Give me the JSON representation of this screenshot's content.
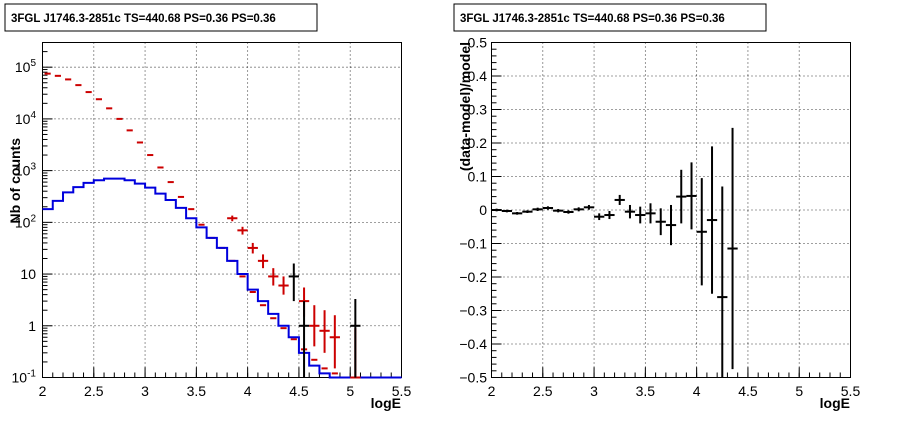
{
  "chart_data": [
    {
      "type": "histogram",
      "title": "3FGL J1746.3-2851c TS=440.68 PS=0.36 PS=0.36",
      "xlabel": "logE",
      "ylabel": "Nb of counts",
      "xlim": [
        2,
        5.5
      ],
      "ylim": [
        0.1,
        300000
      ],
      "y_scale": "log",
      "grid": true,
      "x_ticks": [
        "2",
        "2.5",
        "3",
        "3.5",
        "4",
        "4.5",
        "5",
        "5.5"
      ],
      "y_ticks": [
        {
          "value": 0.1,
          "label": "10",
          "sup": "-1"
        },
        {
          "value": 1,
          "label": "1",
          "sup": ""
        },
        {
          "value": 10,
          "label": "10",
          "sup": ""
        },
        {
          "value": 100,
          "label": "10",
          "sup": "2"
        },
        {
          "value": 1000,
          "label": "10",
          "sup": "3"
        },
        {
          "value": 10000,
          "label": "10",
          "sup": "4"
        },
        {
          "value": 100000,
          "label": "10",
          "sup": "5"
        }
      ],
      "bin_width": 0.1,
      "series": [
        {
          "color": "#cc0000",
          "style": "markers",
          "x": [
            2.05,
            2.15,
            2.25,
            2.35,
            2.45,
            2.55,
            2.65,
            2.75,
            2.85,
            2.95,
            3.05,
            3.15,
            3.25,
            3.35,
            3.45,
            3.55,
            3.65,
            3.75,
            3.85,
            3.95,
            4.05,
            4.15,
            4.25,
            4.35,
            4.45,
            4.55,
            4.65,
            4.75,
            4.85,
            4.95,
            5.05
          ],
          "y": [
            75000,
            68000,
            58000,
            45000,
            33000,
            24000,
            16000,
            10000,
            6000,
            3500,
            2000,
            1150,
            600,
            310,
            180,
            90,
            50,
            32,
            18,
            9,
            4.5,
            2.5,
            1.4,
            0.9,
            0.55,
            0.35,
            0.22,
            0.15,
            0.12,
            0.1,
            0.1
          ],
          "y_err_low": [
            0,
            0,
            0,
            0,
            0,
            0,
            0,
            0,
            0,
            0,
            0,
            0,
            0,
            0,
            0,
            0,
            0,
            0,
            0,
            0,
            0,
            0,
            0,
            0,
            0,
            0,
            0,
            0,
            0,
            0,
            0
          ],
          "y_err_high": [
            0,
            0,
            0,
            0,
            0,
            0,
            0,
            0,
            0,
            0,
            0,
            0,
            0,
            0,
            0,
            0,
            0,
            0,
            0,
            0,
            0,
            0,
            0,
            0,
            0,
            0,
            0,
            0,
            0,
            0,
            0
          ]
        },
        {
          "color": "#0000dd",
          "style": "step",
          "x": [
            2.05,
            2.15,
            2.25,
            2.35,
            2.45,
            2.55,
            2.65,
            2.75,
            2.85,
            2.95,
            3.05,
            3.15,
            3.25,
            3.35,
            3.45,
            3.55,
            3.65,
            3.75,
            3.85,
            3.95,
            4.05,
            4.15,
            4.25,
            4.35,
            4.45,
            4.55,
            4.65,
            4.75,
            4.85,
            4.95,
            5.05,
            5.15,
            5.25,
            5.35,
            5.45
          ],
          "y": [
            180,
            260,
            380,
            480,
            580,
            650,
            700,
            700,
            650,
            560,
            470,
            360,
            270,
            190,
            120,
            80,
            50,
            32,
            18,
            10,
            5,
            3,
            1.7,
            1,
            0.6,
            0.3,
            0.17,
            0.12,
            0.1,
            0.1,
            0.1,
            0.1,
            0.1,
            0.1,
            0.1
          ]
        },
        {
          "color": "#cc0000",
          "style": "errorbars",
          "x": [
            3.85,
            3.95,
            4.05,
            4.15,
            4.25,
            4.35,
            4.55,
            4.65,
            4.75,
            4.85,
            5.05
          ],
          "y": [
            120,
            70,
            32,
            18,
            9,
            6,
            3,
            1,
            0.8,
            0.6,
            0.1
          ],
          "y_err_low": [
            15,
            12,
            7,
            5,
            3,
            2,
            1.5,
            0.6,
            0.5,
            0.45,
            0
          ],
          "y_err_high": [
            15,
            12,
            8,
            6,
            4,
            3,
            2.5,
            1.5,
            1.2,
            1,
            0.8
          ]
        },
        {
          "color": "#000000",
          "style": "errorbars",
          "x": [
            4.45,
            4.55,
            5.05
          ],
          "y": [
            9,
            1,
            1
          ],
          "y_err_low": [
            6,
            0.9,
            0.9
          ],
          "y_err_high": [
            7,
            2,
            2.3
          ]
        }
      ]
    },
    {
      "type": "errorbar",
      "title": "3FGL J1746.3-2851c TS=440.68 PS=0.36 PS=0.36",
      "xlabel": "logE",
      "ylabel": "(data-model)/model",
      "xlim": [
        2,
        5.5
      ],
      "ylim": [
        -0.5,
        0.5
      ],
      "grid": true,
      "x_ticks": [
        "2",
        "2.5",
        "3",
        "3.5",
        "4",
        "4.5",
        "5",
        "5.5"
      ],
      "y_ticks": [
        {
          "value": -0.5,
          "label": "−0.5"
        },
        {
          "value": -0.4,
          "label": "−0.4"
        },
        {
          "value": -0.3,
          "label": "−0.3"
        },
        {
          "value": -0.2,
          "label": "−0.2"
        },
        {
          "value": -0.1,
          "label": "−0.1"
        },
        {
          "value": 0,
          "label": "0"
        },
        {
          "value": 0.1,
          "label": "0.1"
        },
        {
          "value": 0.2,
          "label": "0.2"
        },
        {
          "value": 0.3,
          "label": "0.3"
        },
        {
          "value": 0.4,
          "label": "0.4"
        },
        {
          "value": 0.5,
          "label": "0.5"
        }
      ],
      "bin_width": 0.1,
      "points": {
        "color": "#000000",
        "x": [
          2.05,
          2.15,
          2.25,
          2.35,
          2.45,
          2.55,
          2.65,
          2.75,
          2.85,
          2.95,
          3.05,
          3.15,
          3.25,
          3.35,
          3.45,
          3.55,
          3.65,
          3.75,
          3.85,
          3.95,
          4.05,
          4.15,
          4.25,
          4.35
        ],
        "y": [
          0,
          -0.003,
          -0.01,
          -0.005,
          0.002,
          0.006,
          -0.002,
          -0.006,
          0.002,
          0.008,
          -0.02,
          -0.015,
          0.03,
          -0.005,
          -0.015,
          -0.01,
          -0.035,
          -0.045,
          0.04,
          0.042,
          -0.065,
          -0.03,
          -0.26,
          -0.115
        ],
        "err": [
          0.004,
          0.004,
          0.004,
          0.004,
          0.005,
          0.005,
          0.005,
          0.005,
          0.006,
          0.007,
          0.01,
          0.012,
          0.015,
          0.02,
          0.025,
          0.03,
          0.04,
          0.06,
          0.08,
          0.1,
          0.16,
          0.22,
          0.33,
          0.36
        ]
      }
    }
  ]
}
